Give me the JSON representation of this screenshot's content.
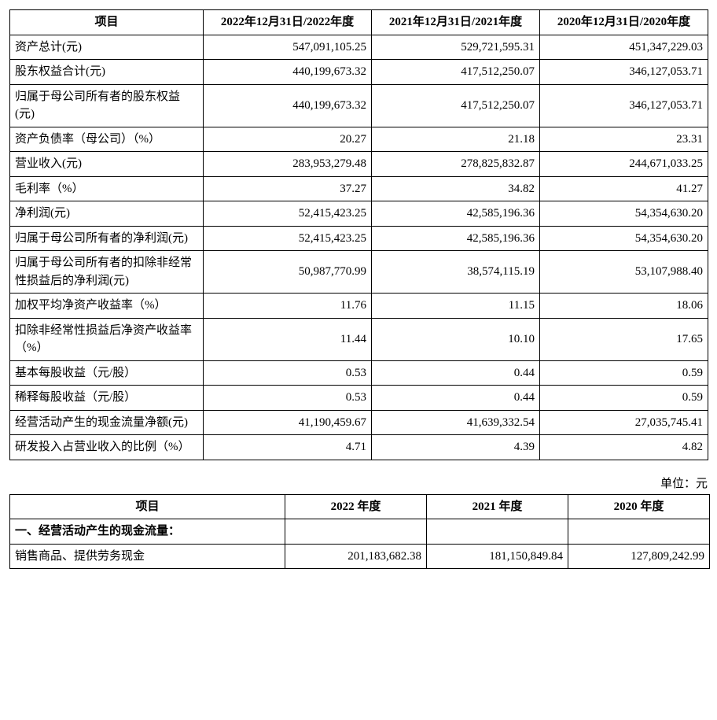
{
  "table1": {
    "columns": [
      {
        "label": "项目",
        "class": "hdr"
      },
      {
        "label": "2022年12月31日/2022年度",
        "class": "hdr"
      },
      {
        "label": "2021年12月31日/2021年度",
        "class": "hdr"
      },
      {
        "label": "2020年12月31日/2020年度",
        "class": "hdr"
      }
    ],
    "rows": [
      {
        "item": "资产总计(元)",
        "v2022": "547,091,105.25",
        "v2021": "529,721,595.31",
        "v2020": "451,347,229.03"
      },
      {
        "item": "股东权益合计(元)",
        "v2022": "440,199,673.32",
        "v2021": "417,512,250.07",
        "v2020": "346,127,053.71"
      },
      {
        "item": "归属于母公司所有者的股东权益(元)",
        "v2022": "440,199,673.32",
        "v2021": "417,512,250.07",
        "v2020": "346,127,053.71"
      },
      {
        "item": "资产负债率（母公司）（%）",
        "v2022": "20.27",
        "v2021": "21.18",
        "v2020": "23.31"
      },
      {
        "item": "营业收入(元)",
        "v2022": "283,953,279.48",
        "v2021": "278,825,832.87",
        "v2020": "244,671,033.25"
      },
      {
        "item": "毛利率（%）",
        "v2022": "37.27",
        "v2021": "34.82",
        "v2020": "41.27"
      },
      {
        "item": "净利润(元)",
        "v2022": "52,415,423.25",
        "v2021": "42,585,196.36",
        "v2020": "54,354,630.20"
      },
      {
        "item": "归属于母公司所有者的净利润(元)",
        "v2022": "52,415,423.25",
        "v2021": "42,585,196.36",
        "v2020": "54,354,630.20"
      },
      {
        "item": "归属于母公司所有者的扣除非经常性损益后的净利润(元)",
        "v2022": "50,987,770.99",
        "v2021": "38,574,115.19",
        "v2020": "53,107,988.40"
      },
      {
        "item": "加权平均净资产收益率（%）",
        "v2022": "11.76",
        "v2021": "11.15",
        "v2020": "18.06"
      },
      {
        "item": "扣除非经常性损益后净资产收益率（%）",
        "v2022": "11.44",
        "v2021": "10.10",
        "v2020": "17.65"
      },
      {
        "item": "基本每股收益（元/股）",
        "v2022": "0.53",
        "v2021": "0.44",
        "v2020": "0.59"
      },
      {
        "item": "稀释每股收益（元/股）",
        "v2022": "0.53",
        "v2021": "0.44",
        "v2020": "0.59"
      },
      {
        "item": "经营活动产生的现金流量净额(元)",
        "v2022": "41,190,459.67",
        "v2021": "41,639,332.54",
        "v2020": "27,035,745.41"
      },
      {
        "item": "研发投入占营业收入的比例（%）",
        "v2022": "4.71",
        "v2021": "4.39",
        "v2020": "4.82"
      }
    ]
  },
  "unit_label": "单位：元",
  "table2": {
    "columns": [
      {
        "label": "项目",
        "class": "hdr"
      },
      {
        "label": "2022 年度",
        "class": "hdr"
      },
      {
        "label": "2021 年度",
        "class": "hdr"
      },
      {
        "label": "2020 年度",
        "class": "hdr"
      }
    ],
    "section_label": "一、经营活动产生的现金流量：",
    "rows": [
      {
        "item": "销售商品、提供劳务现金",
        "v2022": "201,183,682.38",
        "v2021": "181,150,849.84",
        "v2020": "127,809,242.99"
      }
    ]
  }
}
